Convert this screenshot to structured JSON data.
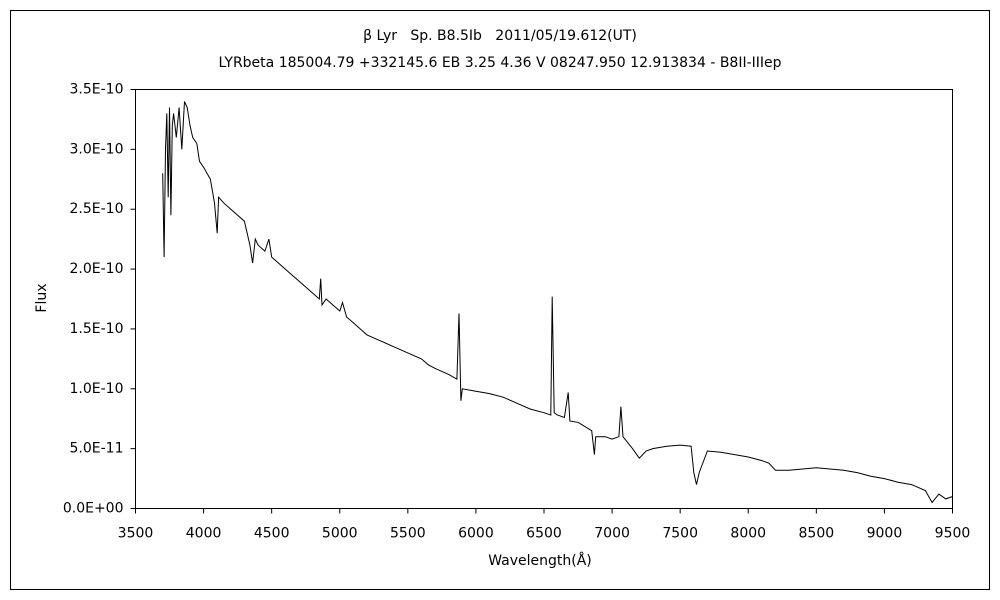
{
  "chart_data": {
    "type": "line",
    "title": "β Lyr   Sp. B8.5Ib   2011/05/19.612(UT)",
    "subtitle": "LYRbeta 185004.79 +332145.6 EB 3.25 4.36 V 08247.950 12.913834 - B8II-IIIep",
    "x_label": "Wavelength(Å)",
    "y_label": "Flux",
    "color": "#000000",
    "grid": false,
    "xlim": [
      3500,
      9500
    ],
    "xticks": [
      3500,
      4000,
      4500,
      5000,
      5500,
      6000,
      6500,
      7000,
      7500,
      8000,
      8500,
      9000,
      9500
    ],
    "ylim": [
      0,
      3.5e-10
    ],
    "yticks": [
      {
        "value": 0,
        "label": "0.0E+00"
      },
      {
        "value": 5e-11,
        "label": "5.0E-11"
      },
      {
        "value": 1e-10,
        "label": "1.0E-10"
      },
      {
        "value": 1.5e-10,
        "label": "1.5E-10"
      },
      {
        "value": 2e-10,
        "label": "2.0E-10"
      },
      {
        "value": 2.5e-10,
        "label": "2.5E-10"
      },
      {
        "value": 3e-10,
        "label": "3.0E-10"
      },
      {
        "value": 3.5e-10,
        "label": "3.5E-10"
      }
    ],
    "x": [
      3700,
      3710,
      3720,
      3730,
      3740,
      3750,
      3760,
      3770,
      3780,
      3800,
      3820,
      3840,
      3860,
      3880,
      3900,
      3920,
      3950,
      3970,
      4000,
      4050,
      4080,
      4100,
      4110,
      4150,
      4200,
      4250,
      4300,
      4340,
      4360,
      4380,
      4400,
      4450,
      4480,
      4500,
      4550,
      4600,
      4650,
      4700,
      4750,
      4800,
      4850,
      4860,
      4870,
      4900,
      4950,
      5000,
      5020,
      5050,
      5100,
      5150,
      5200,
      5300,
      5400,
      5500,
      5600,
      5650,
      5700,
      5800,
      5860,
      5876,
      5890,
      5900,
      6000,
      6100,
      6200,
      6300,
      6400,
      6500,
      6550,
      6560,
      6575,
      6600,
      6650,
      6678,
      6690,
      6750,
      6850,
      6870,
      6880,
      6950,
      7000,
      7050,
      7065,
      7080,
      7150,
      7200,
      7250,
      7300,
      7400,
      7500,
      7580,
      7600,
      7620,
      7640,
      7700,
      7800,
      7900,
      8000,
      8100,
      8150,
      8200,
      8300,
      8400,
      8500,
      8600,
      8700,
      8800,
      8900,
      9000,
      9100,
      9200,
      9300,
      9350,
      9400,
      9450,
      9500
    ],
    "values": [
      2.8e-10,
      2.1e-10,
      3e-10,
      3.3e-10,
      2.6e-10,
      3.35e-10,
      2.45e-10,
      3.2e-10,
      3.3e-10,
      3.1e-10,
      3.35e-10,
      3e-10,
      3.4e-10,
      3.35e-10,
      3.2e-10,
      3.1e-10,
      3.05e-10,
      2.9e-10,
      2.85e-10,
      2.75e-10,
      2.55e-10,
      2.3e-10,
      2.6e-10,
      2.55e-10,
      2.5e-10,
      2.45e-10,
      2.4e-10,
      2.2e-10,
      2.05e-10,
      2.25e-10,
      2.2e-10,
      2.15e-10,
      2.25e-10,
      2.1e-10,
      2.05e-10,
      2e-10,
      1.95e-10,
      1.9e-10,
      1.85e-10,
      1.8e-10,
      1.75e-10,
      1.92e-10,
      1.7e-10,
      1.75e-10,
      1.7e-10,
      1.65e-10,
      1.72e-10,
      1.6e-10,
      1.55e-10,
      1.5e-10,
      1.45e-10,
      1.4e-10,
      1.35e-10,
      1.3e-10,
      1.25e-10,
      1.2e-10,
      1.17e-10,
      1.12e-10,
      1.08e-10,
      1.63e-10,
      9e-11,
      1e-10,
      9.8e-11,
      9.6e-11,
      9.3e-11,
      8.8e-11,
      8.3e-11,
      8e-11,
      7.8e-11,
      1.77e-10,
      8e-11,
      7.8e-11,
      7.6e-11,
      9.7e-11,
      7.3e-11,
      7.2e-11,
      6.5e-11,
      4.5e-11,
      6e-11,
      6e-11,
      5.8e-11,
      6e-11,
      8.5e-11,
      6e-11,
      5e-11,
      4.2e-11,
      4.8e-11,
      5e-11,
      5.2e-11,
      5.3e-11,
      5.2e-11,
      3e-11,
      2e-11,
      3e-11,
      4.8e-11,
      4.7e-11,
      4.5e-11,
      4.3e-11,
      4e-11,
      3.8e-11,
      3.2e-11,
      3.2e-11,
      3.3e-11,
      3.4e-11,
      3.3e-11,
      3.2e-11,
      3e-11,
      2.7e-11,
      2.5e-11,
      2.2e-11,
      2e-11,
      1.5e-11,
      5e-12,
      1.2e-11,
      8e-12,
      1e-11
    ]
  }
}
